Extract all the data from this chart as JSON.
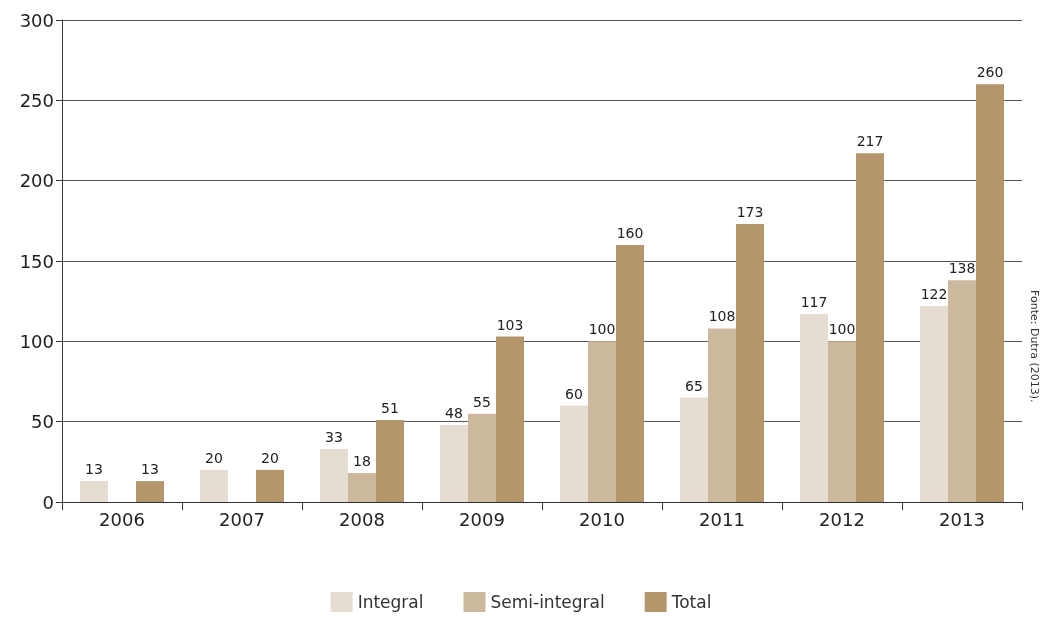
{
  "chart_data": {
    "type": "bar",
    "categories": [
      "2006",
      "2007",
      "2008",
      "2009",
      "2010",
      "2011",
      "2012",
      "2013"
    ],
    "series": [
      {
        "name": "Integral",
        "color": "#e6ddd2",
        "values": [
          13,
          20,
          33,
          48,
          60,
          65,
          117,
          122
        ]
      },
      {
        "name": "Semi-integral",
        "color": "#ccb89d",
        "values": [
          null,
          null,
          18,
          55,
          100,
          108,
          100,
          138
        ]
      },
      {
        "name": "Total",
        "color": "#b5956b",
        "values": [
          13,
          20,
          51,
          103,
          160,
          173,
          217,
          260
        ]
      }
    ],
    "ylim": [
      0,
      300
    ],
    "yticks": [
      0,
      50,
      100,
      150,
      200,
      250,
      300
    ],
    "grid": "y",
    "legend": "bottom",
    "data_labels": true,
    "annotations": [
      "Fonte: Dutra (2013)."
    ]
  }
}
